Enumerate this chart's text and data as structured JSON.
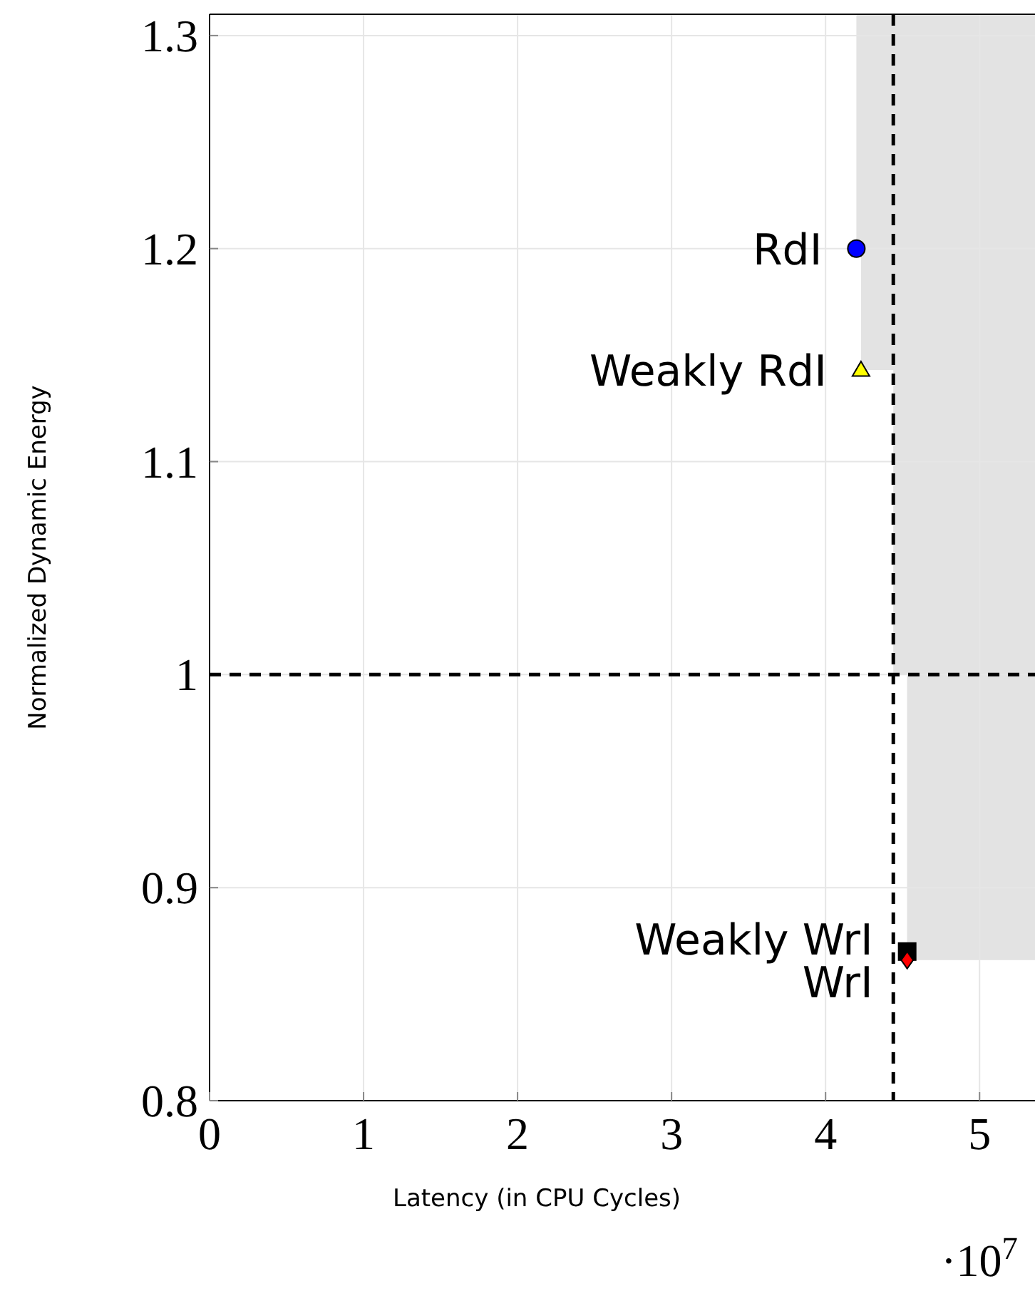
{
  "chart_data": {
    "type": "scatter",
    "xlabel": "Latency (in CPU Cycles)",
    "ylabel": "Normalized Dynamic Energy",
    "xlim": [
      0,
      5.36
    ],
    "ylim": [
      0.8,
      1.31
    ],
    "xticks": [
      0,
      1,
      2,
      3,
      4,
      5
    ],
    "yticks": [
      0.8,
      0.9,
      1,
      1.1,
      1.2,
      1.3
    ],
    "grid": true,
    "series": [
      {
        "name": "RdI",
        "color": "#0000ff",
        "marker": "circle",
        "x": [
          4.2
        ],
        "values": [
          1.2
        ]
      },
      {
        "name": "Weakly RdI",
        "color": "#ffff00",
        "marker": "triangle",
        "x": [
          4.23
        ],
        "values": [
          1.143
        ]
      },
      {
        "name": "Weakly WrI",
        "color": "#000000",
        "marker": "square",
        "x": [
          4.53
        ],
        "values": [
          0.87
        ]
      },
      {
        "name": "WrI",
        "color": "#ff0000",
        "marker": "diamond",
        "x": [
          4.53
        ],
        "values": [
          0.866
        ]
      }
    ],
    "ref_lines": [
      {
        "axis": "x",
        "value": 4.44,
        "line_style": "dashed",
        "color": "#000000"
      },
      {
        "axis": "y",
        "value": 1,
        "line_style": "dashed",
        "color": "#000000"
      }
    ],
    "annotations": [
      "·10$^{7}$"
    ]
  }
}
